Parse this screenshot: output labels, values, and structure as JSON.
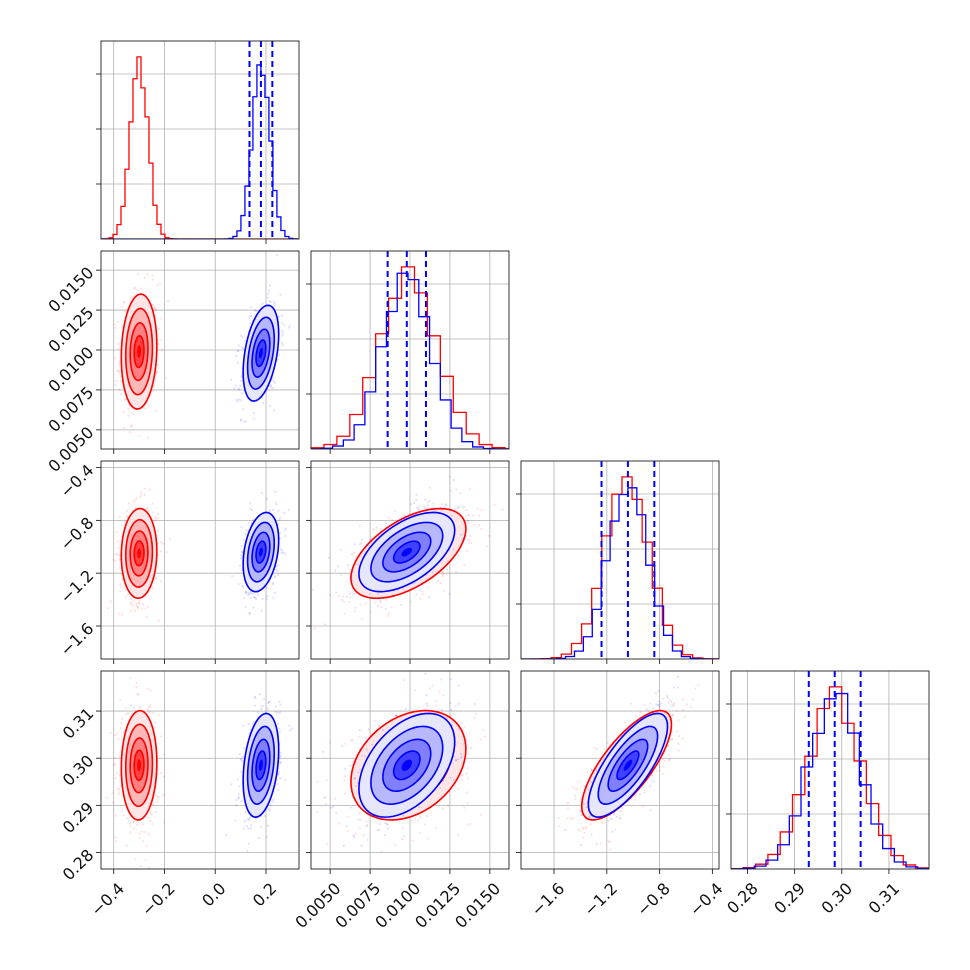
{
  "chart_data": {
    "type": "corner",
    "colors": {
      "red": "#ff0000",
      "blue": "#0000ff"
    },
    "parameters": [
      {
        "id": "p1",
        "range": [
          -0.45,
          0.33
        ],
        "ticks": [
          -0.4,
          -0.2,
          0.0,
          0.2
        ],
        "tick_labels": [
          "−0.4",
          "−0.2",
          "0.0",
          "0.2"
        ]
      },
      {
        "id": "p2",
        "range": [
          0.0038,
          0.0162
        ],
        "ticks": [
          0.005,
          0.0075,
          0.01,
          0.0125,
          0.015
        ],
        "tick_labels": [
          "0.0050",
          "0.0075",
          "0.0100",
          "0.0125",
          "0.0150"
        ]
      },
      {
        "id": "p3",
        "range": [
          -1.85,
          -0.35
        ],
        "ticks": [
          -1.6,
          -1.2,
          -0.8,
          -0.4
        ],
        "tick_labels": [
          "−1.6",
          "−1.2",
          "−0.8",
          "−0.4"
        ]
      },
      {
        "id": "p4",
        "range": [
          0.2765,
          0.3185
        ],
        "ticks": [
          0.28,
          0.29,
          0.3,
          0.31
        ],
        "tick_labels": [
          "0.28",
          "0.29",
          "0.30",
          "0.31"
        ]
      }
    ],
    "series": [
      {
        "color": "red",
        "mean": [
          -0.3,
          0.0099,
          -1.05,
          0.2985
        ],
        "std": [
          0.035,
          0.0018,
          0.17,
          0.0058
        ],
        "corr": {
          "1-2": 0.1,
          "1-3": 0.05,
          "1-4": 0.05,
          "2-3": 0.55,
          "2-4": 0.3,
          "3-4": 0.75
        }
      },
      {
        "color": "blue",
        "mean": [
          0.18,
          0.0098,
          -1.04,
          0.2985
        ],
        "std": [
          0.035,
          0.0015,
          0.15,
          0.0055
        ],
        "corr": {
          "1-2": 0.4,
          "1-3": 0.3,
          "1-4": 0.3,
          "2-3": 0.55,
          "2-4": 0.45,
          "3-4": 0.75
        }
      }
    ],
    "quantile_lines": {
      "color": "blue",
      "style": "dashed",
      "values": [
        [
          0.135,
          0.18,
          0.225
        ],
        [
          0.0086,
          0.0098,
          0.011
        ],
        [
          -1.24,
          -1.04,
          -0.84
        ],
        [
          0.293,
          0.2985,
          0.304
        ]
      ]
    },
    "contour_levels": 4,
    "grid": true
  }
}
